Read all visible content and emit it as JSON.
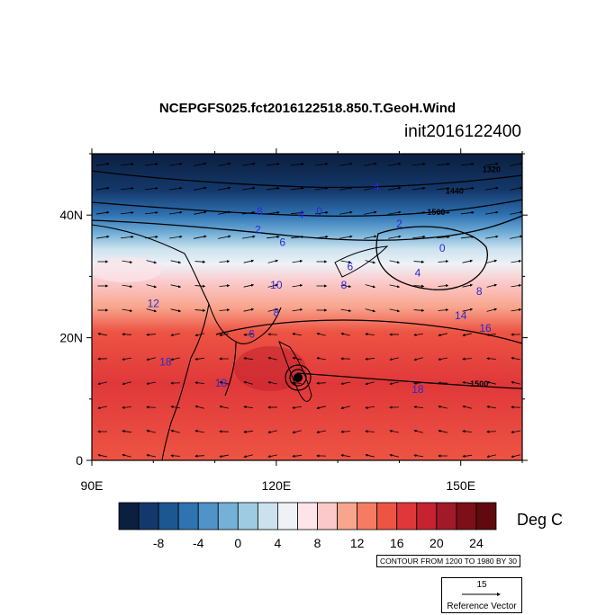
{
  "title": "NCEPGFS025.fct2016122518.850.T.GeoH.Wind",
  "subtitle": "init2016122400",
  "axes": {
    "x_ticks": [
      {
        "lon": 90,
        "label": "90E"
      },
      {
        "lon": 120,
        "label": "120E"
      },
      {
        "lon": 150,
        "label": "150E"
      }
    ],
    "y_ticks": [
      {
        "lat": 40,
        "label": "40N"
      },
      {
        "lat": 20,
        "label": "20N"
      },
      {
        "lat": 0,
        "label": "0"
      }
    ],
    "lon_range": [
      90,
      160
    ],
    "lat_range": [
      0,
      50
    ]
  },
  "colorbar": {
    "unit": "Deg C",
    "colors": [
      "#0b1f3f",
      "#14386b",
      "#1d5792",
      "#2f73b3",
      "#4f93c9",
      "#74b0d8",
      "#9fcbe2",
      "#cbe2ee",
      "#eef2f7",
      "#fce4e8",
      "#fbc9c9",
      "#f8a58e",
      "#f57c62",
      "#ed5443",
      "#e0383a",
      "#c4232f",
      "#a11a2a",
      "#7d0f18",
      "#600a0f"
    ],
    "tick_labels": [
      {
        "i": 2,
        "label": "-8"
      },
      {
        "i": 4,
        "label": "-4"
      },
      {
        "i": 6,
        "label": "0"
      },
      {
        "i": 8,
        "label": "4"
      },
      {
        "i": 10,
        "label": "8"
      },
      {
        "i": 12,
        "label": "12"
      },
      {
        "i": 14,
        "label": "16"
      },
      {
        "i": 16,
        "label": "20"
      },
      {
        "i": 18,
        "label": "24"
      }
    ]
  },
  "contour_info": "CONTOUR FROM 1200 TO 1980 BY 30",
  "reference_vector": {
    "value": "15",
    "label": "Reference Vector"
  },
  "contour_labels": [
    {
      "lon": 155,
      "lat": 47,
      "text": "1320"
    },
    {
      "lon": 149,
      "lat": 43.5,
      "text": "1440"
    },
    {
      "lon": 146,
      "lat": 40,
      "text": "1500"
    },
    {
      "lon": 153,
      "lat": 12,
      "text": "1500"
    }
  ],
  "temp_labels": [
    {
      "lon": 136,
      "lat": 44,
      "text": "-4"
    },
    {
      "lon": 127,
      "lat": 40,
      "text": "0"
    },
    {
      "lon": 124,
      "lat": 39.5,
      "text": "4"
    },
    {
      "lon": 117,
      "lat": 40,
      "text": "-8"
    },
    {
      "lon": 117,
      "lat": 37,
      "text": "2"
    },
    {
      "lon": 121,
      "lat": 35,
      "text": "6"
    },
    {
      "lon": 140,
      "lat": 38,
      "text": "2"
    },
    {
      "lon": 147,
      "lat": 34,
      "text": "0"
    },
    {
      "lon": 143,
      "lat": 30,
      "text": "4"
    },
    {
      "lon": 132,
      "lat": 31,
      "text": "6"
    },
    {
      "lon": 131,
      "lat": 28,
      "text": "8"
    },
    {
      "lon": 120,
      "lat": 28,
      "text": "10"
    },
    {
      "lon": 120,
      "lat": 23.5,
      "text": "8"
    },
    {
      "lon": 116,
      "lat": 20,
      "text": "6"
    },
    {
      "lon": 150,
      "lat": 23,
      "text": "14"
    },
    {
      "lon": 154,
      "lat": 21,
      "text": "16"
    },
    {
      "lon": 153,
      "lat": 27,
      "text": "8"
    },
    {
      "lon": 100,
      "lat": 25,
      "text": "12"
    },
    {
      "lon": 102,
      "lat": 15.5,
      "text": "18"
    },
    {
      "lon": 111,
      "lat": 12,
      "text": "18"
    },
    {
      "lon": 143,
      "lat": 11,
      "text": "18"
    }
  ]
}
